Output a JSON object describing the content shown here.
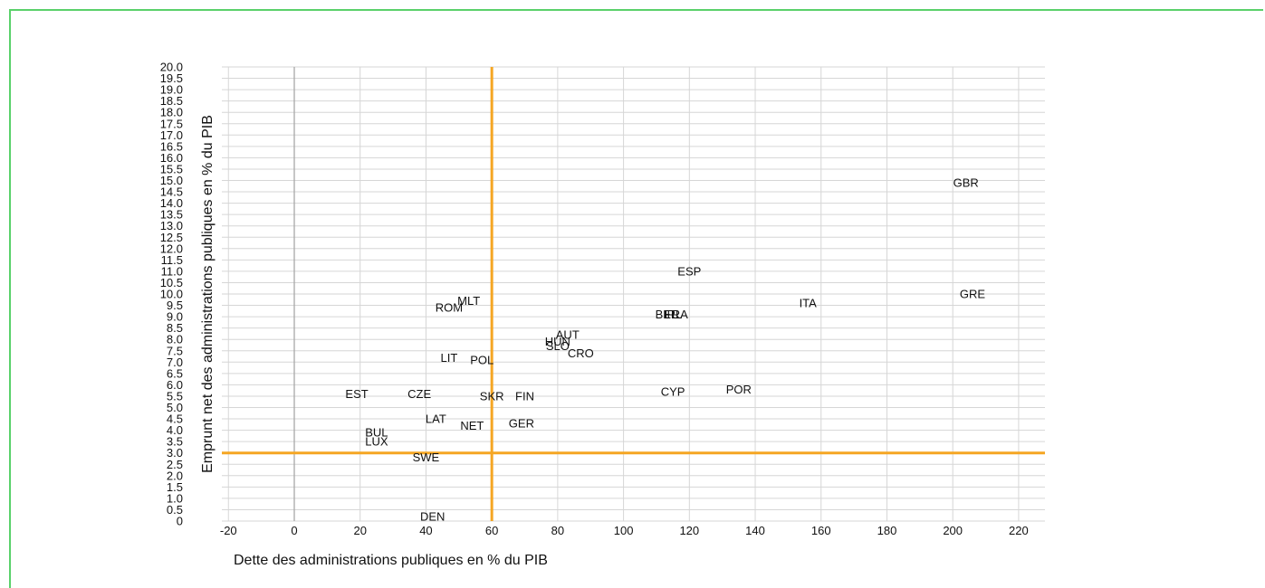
{
  "chart_data": {
    "type": "scatter",
    "xlabel": "Dette des administrations publiques en % du PIB",
    "ylabel": "Emprunt net des administrations publiques en % du PIB",
    "xlim": [
      -22,
      228
    ],
    "ylim": [
      0,
      20
    ],
    "x_ticks": [
      "-20",
      "0",
      "20",
      "40",
      "60",
      "80",
      "100",
      "120",
      "140",
      "160",
      "180",
      "200",
      "220"
    ],
    "y_ticks": [
      "20.0",
      "19.5",
      "19.0",
      "18.5",
      "18.0",
      "17.5",
      "17.0",
      "16.5",
      "16.0",
      "15.5",
      "15.0",
      "14.5",
      "14.0",
      "13.5",
      "13.0",
      "12.5",
      "12.0",
      "11.5",
      "11.0",
      "10.5",
      "10.0",
      "9.5",
      "9.0",
      "8.5",
      "8.0",
      "7.5",
      "7.0",
      "6.5",
      "6.0",
      "5.5",
      "5.0",
      "4.5",
      "4.0",
      "3.5",
      "3.0",
      "2.5",
      "2.0",
      "1.5",
      "1.0",
      "0.5",
      "0"
    ],
    "reference_lines": {
      "x": 60,
      "y": 3,
      "color": "#f5a623"
    },
    "grid": true,
    "points": [
      {
        "label": "GBR",
        "x": 204,
        "y": 14.9
      },
      {
        "label": "ESP",
        "x": 120,
        "y": 11.0
      },
      {
        "label": "GRE",
        "x": 206,
        "y": 10.0
      },
      {
        "label": "ITA",
        "x": 156,
        "y": 9.6
      },
      {
        "label": "MLT",
        "x": 53,
        "y": 9.7
      },
      {
        "label": "ROM",
        "x": 47,
        "y": 9.4
      },
      {
        "label": "BEL",
        "x": 113,
        "y": 9.1
      },
      {
        "label": "IRL",
        "x": 115,
        "y": 9.1
      },
      {
        "label": "FRA",
        "x": 116,
        "y": 9.1
      },
      {
        "label": "AUT",
        "x": 83,
        "y": 8.2
      },
      {
        "label": "HUN",
        "x": 80,
        "y": 7.9
      },
      {
        "label": "SLO",
        "x": 80,
        "y": 7.7
      },
      {
        "label": "CRO",
        "x": 87,
        "y": 7.4
      },
      {
        "label": "LIT",
        "x": 47,
        "y": 7.2
      },
      {
        "label": "POL",
        "x": 57,
        "y": 7.1
      },
      {
        "label": "CYP",
        "x": 115,
        "y": 5.7
      },
      {
        "label": "POR",
        "x": 135,
        "y": 5.8
      },
      {
        "label": "EST",
        "x": 19,
        "y": 5.6
      },
      {
        "label": "CZE",
        "x": 38,
        "y": 5.6
      },
      {
        "label": "SKR",
        "x": 60,
        "y": 5.5
      },
      {
        "label": "FIN",
        "x": 70,
        "y": 5.5
      },
      {
        "label": "LAT",
        "x": 43,
        "y": 4.5
      },
      {
        "label": "GER",
        "x": 69,
        "y": 4.3
      },
      {
        "label": "NET",
        "x": 54,
        "y": 4.2
      },
      {
        "label": "BUL",
        "x": 25,
        "y": 3.9
      },
      {
        "label": "LUX",
        "x": 25,
        "y": 3.5
      },
      {
        "label": "SWE",
        "x": 40,
        "y": 2.8
      },
      {
        "label": "DEN",
        "x": 42,
        "y": 0.2
      }
    ]
  }
}
